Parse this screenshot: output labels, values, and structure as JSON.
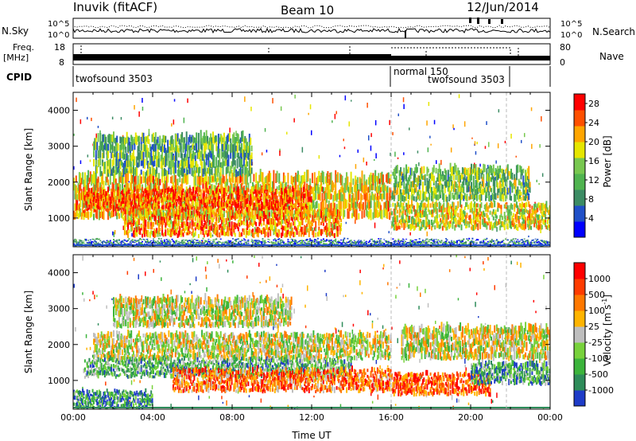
{
  "header": {
    "station": "Inuvik (fitACF)",
    "beam": "Beam 10",
    "date": "12/Jun/2014"
  },
  "left_labels": {
    "nsky": "N.Sky",
    "freq": "Freq.",
    "freq_unit": "[MHz]",
    "cpid": "CPID"
  },
  "right_labels": {
    "nsearch": "N.Search",
    "nave": "Nave"
  },
  "noise_ticks": {
    "left": [
      "10^5",
      "10^0"
    ],
    "right": [
      "10^5",
      "10^0"
    ]
  },
  "freq_ticks": {
    "left": [
      "18",
      "8"
    ],
    "right": [
      "80",
      "0"
    ]
  },
  "cpid_segments": [
    {
      "label": "twofsound 3503",
      "start_hour": 0.0,
      "end_hour": 16.0
    },
    {
      "label": "normal 150",
      "start_hour": 16.0,
      "end_hour": 16.6
    },
    {
      "label": "twofsound 3503",
      "start_hour": 16.6,
      "end_hour": 21.8
    }
  ],
  "chart_data": [
    {
      "type": "heatmap",
      "panel": "power",
      "xlabel": "",
      "ylabel": "Slant Range [km]",
      "xlim_hours": [
        0,
        24
      ],
      "ylim": [
        200,
        4500
      ],
      "y_ticks": [
        "1000",
        "2000",
        "3000",
        "4000"
      ],
      "colorbar": {
        "label": "Power [dB]",
        "ticks": [
          "4",
          "8",
          "12",
          "16",
          "20",
          "24",
          "28"
        ],
        "range": [
          0,
          30
        ],
        "colors": [
          "#0000ff",
          "#2050c8",
          "#3c8c64",
          "#50b450",
          "#78c850",
          "#e6e600",
          "#ffa500",
          "#ff5000",
          "#ff0000"
        ]
      },
      "bands": [
        {
          "t0": 0.0,
          "t1": 16.0,
          "r0": 1000,
          "r1": 2200,
          "level": 0.65
        },
        {
          "t0": 0.5,
          "t1": 12.0,
          "r0": 1200,
          "r1": 1800,
          "level": 0.85
        },
        {
          "t0": 2.5,
          "t1": 13.5,
          "r0": 500,
          "r1": 1200,
          "level": 0.75
        },
        {
          "t0": 1.0,
          "t1": 9.0,
          "r0": 2200,
          "r1": 3300,
          "level": 0.4
        },
        {
          "t0": 16.0,
          "t1": 24.0,
          "r0": 700,
          "r1": 1400,
          "level": 0.6
        },
        {
          "t0": 16.0,
          "t1": 23.0,
          "r0": 1500,
          "r1": 2400,
          "level": 0.45
        },
        {
          "t0": 0.0,
          "t1": 24.0,
          "r0": 220,
          "r1": 380,
          "level": 0.25
        }
      ]
    },
    {
      "type": "heatmap",
      "panel": "velocity",
      "xlabel": "Time UT",
      "ylabel": "Slant Range [km]",
      "xlim_hours": [
        0,
        24
      ],
      "ylim": [
        200,
        4500
      ],
      "x_ticks": [
        "00:00",
        "04:00",
        "08:00",
        "12:00",
        "16:00",
        "20:00",
        "00:00"
      ],
      "y_ticks": [
        "1000",
        "2000",
        "3000",
        "4000"
      ],
      "colorbar": {
        "label": "Velocity [m s",
        "label_sup": "-1",
        "label_end": "]",
        "ticks": [
          "1000",
          "500",
          "100",
          "25",
          "-25",
          "-100",
          "-500",
          "-1000"
        ],
        "colors": [
          "#1e3cc8",
          "#2e8c5a",
          "#3cb43c",
          "#78d23c",
          "#bebebe",
          "#ffb400",
          "#ff7800",
          "#ff3c00",
          "#ff0000"
        ]
      },
      "bands": [
        {
          "t0": 1.0,
          "t1": 16.0,
          "r0": 1600,
          "r1": 2300,
          "level": 0.5
        },
        {
          "t0": 2.0,
          "t1": 11.0,
          "r0": 2500,
          "r1": 3300,
          "level": 0.5
        },
        {
          "t0": 0.5,
          "t1": 14.0,
          "r0": 1100,
          "r1": 1600,
          "level": 0.3
        },
        {
          "t0": 5.0,
          "t1": 16.0,
          "r0": 700,
          "r1": 1300,
          "level": 0.75
        },
        {
          "t0": 16.0,
          "t1": 21.0,
          "r0": 600,
          "r1": 1200,
          "level": 0.8
        },
        {
          "t0": 16.5,
          "t1": 24.0,
          "r0": 1600,
          "r1": 2500,
          "level": 0.5
        },
        {
          "t0": 20.0,
          "t1": 24.0,
          "r0": 900,
          "r1": 1500,
          "level": 0.25
        },
        {
          "t0": 0.0,
          "t1": 4.0,
          "r0": 250,
          "r1": 700,
          "level": 0.22
        }
      ]
    }
  ]
}
